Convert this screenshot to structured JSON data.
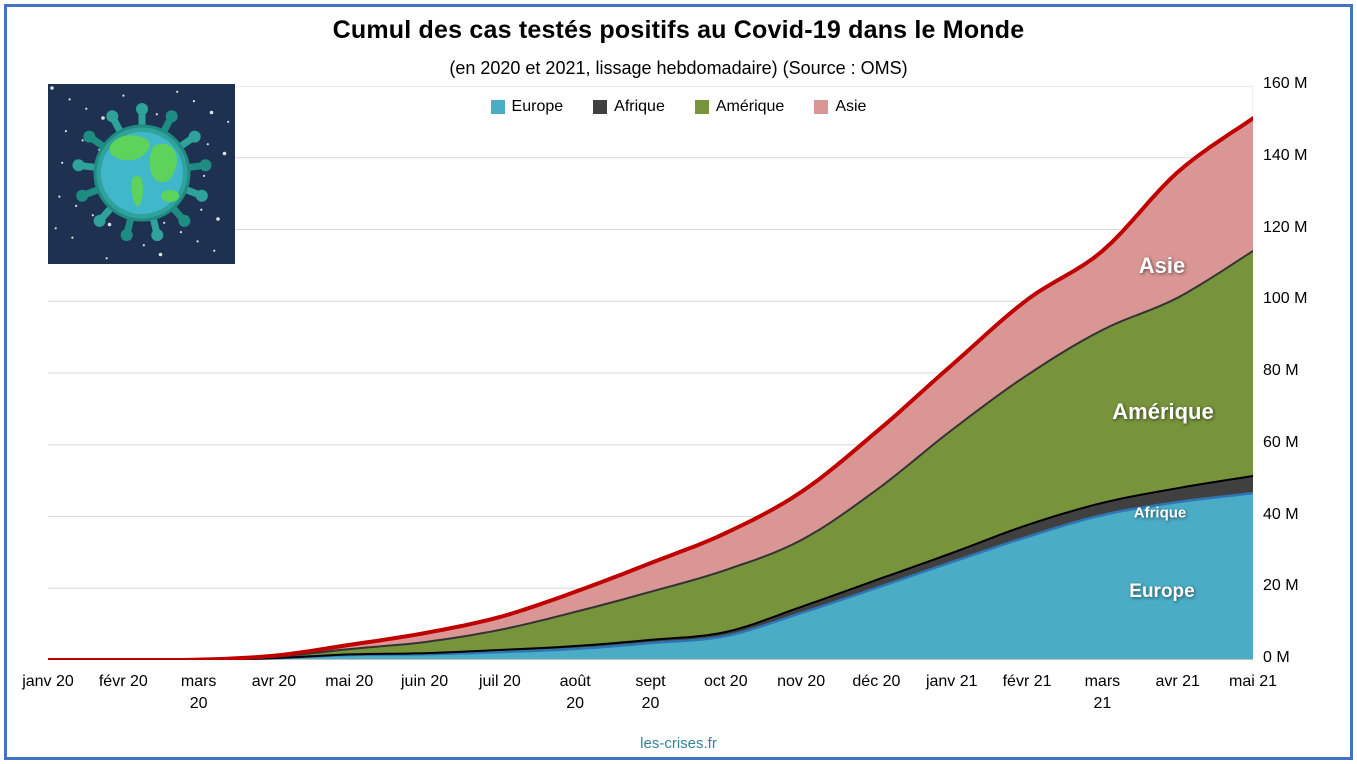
{
  "chart_data": {
    "type": "area",
    "stacked": true,
    "title": "Cumul des cas testés positifs au Covid-19 dans le Monde",
    "subtitle": "(en 2020 et 2021, lissage hebdomadaire) (Source : OMS)",
    "categories": [
      "janv 20",
      "févr 20",
      "mars\n20",
      "avr 20",
      "mai 20",
      "juin 20",
      "juil 20",
      "août\n20",
      "sept\n20",
      "oct 20",
      "nov 20",
      "déc 20",
      "janv 21",
      "févr 21",
      "mars\n21",
      "avr 21",
      "mai 21"
    ],
    "unit": "millions de cas cumulés",
    "series": [
      {
        "name": "Europe",
        "color": "#4BACC6",
        "line_color": "#2E75B6",
        "values": [
          0,
          0,
          0.01,
          0.5,
          1.4,
          1.6,
          2.2,
          3.1,
          4.7,
          6.7,
          13.1,
          20.1,
          27.3,
          34.3,
          40.4,
          44,
          46.5
        ]
      },
      {
        "name": "Afrique",
        "color": "#404040",
        "line_color": "#000000",
        "values": [
          0,
          0,
          0.01,
          0.05,
          0.15,
          0.3,
          0.6,
          0.8,
          0.9,
          1.1,
          1.7,
          2.2,
          2.5,
          3.3,
          3.4,
          3.9,
          4.8
        ]
      },
      {
        "name": "Amérique",
        "color": "#77933C",
        "line_color": "#333333",
        "values": [
          0,
          0,
          0.02,
          0.3,
          1.5,
          3.1,
          5.6,
          9.5,
          13.4,
          17.3,
          18.6,
          25.1,
          34.3,
          41.8,
          48.2,
          53.1,
          62.7
        ]
      },
      {
        "name": "Asie",
        "color": "#D99694",
        "line_color": "#C00000",
        "values": [
          0,
          0.01,
          0.06,
          0.35,
          1.15,
          2.5,
          3.6,
          5.6,
          8,
          10.3,
          13.4,
          16.2,
          18.1,
          21,
          22,
          35,
          37
        ]
      }
    ],
    "ylim": [
      0,
      160
    ],
    "y_ticks": [
      "0 M",
      "20 M",
      "40 M",
      "60 M",
      "80 M",
      "100 M",
      "120 M",
      "140 M",
      "160 M"
    ],
    "grid": true,
    "legend_position": "top",
    "y_axis_side": "right",
    "gridline_color": "#D9D9D9"
  },
  "footer": {
    "text": "les-crises.fr",
    "color": "#31859C"
  },
  "frame": {
    "border_color": "#4472C4"
  },
  "logo": {
    "icon": "virus-globe-icon",
    "background": "#1E3150"
  }
}
